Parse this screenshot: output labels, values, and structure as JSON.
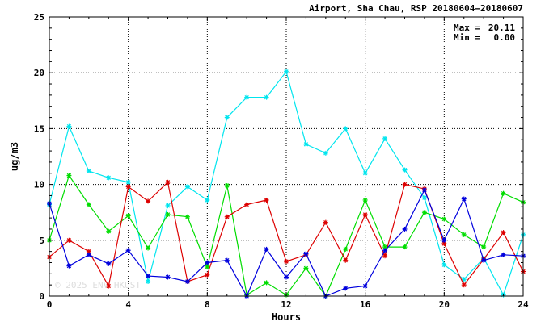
{
  "chart_data": {
    "type": "line",
    "title": "Airport, Sha Chau, RSP 20180604–20180607",
    "xlabel": "Hours",
    "ylabel": "ug/m3",
    "xlim": [
      0,
      24
    ],
    "ylim": [
      0,
      25
    ],
    "xticks": [
      0,
      4,
      8,
      12,
      16,
      20,
      24
    ],
    "yticks": [
      0,
      5,
      10,
      15,
      20,
      25
    ],
    "grid": true,
    "stats": {
      "max_label": "Max =",
      "max_value": "20.11",
      "min_label": "Min =",
      "min_value": "0.00"
    },
    "watermark": "© 2025 ENV HKUST",
    "x": [
      0,
      1,
      2,
      3,
      4,
      5,
      6,
      7,
      8,
      9,
      10,
      11,
      12,
      13,
      14,
      15,
      16,
      17,
      18,
      19,
      20,
      21,
      22,
      23,
      24
    ],
    "series": [
      {
        "color": "#00e5ee",
        "values": [
          8.2,
          15.2,
          11.2,
          10.6,
          10.2,
          1.3,
          8.1,
          9.8,
          8.6,
          16.0,
          17.8,
          17.8,
          20.1,
          13.6,
          12.8,
          15.0,
          11.0,
          14.1,
          11.3,
          8.8,
          2.8,
          1.5,
          3.4,
          0.1,
          5.5
        ]
      },
      {
        "color": "#00dd00",
        "values": [
          5.0,
          10.8,
          8.2,
          5.8,
          7.2,
          4.3,
          7.3,
          7.1,
          2.6,
          9.9,
          0.1,
          1.2,
          0.1,
          2.5,
          0.0,
          4.2,
          8.6,
          4.4,
          4.4,
          7.5,
          6.9,
          5.5,
          4.4,
          9.2,
          8.4
        ]
      },
      {
        "color": "#dd0000",
        "values": [
          3.5,
          5.0,
          4.0,
          0.9,
          9.8,
          8.5,
          10.2,
          1.3,
          1.9,
          7.1,
          8.2,
          8.6,
          3.1,
          3.7,
          6.6,
          3.2,
          7.3,
          3.6,
          10.0,
          9.6,
          4.7,
          1.0,
          3.3,
          5.7,
          2.2
        ]
      },
      {
        "color": "#0000dd",
        "values": [
          8.3,
          2.7,
          3.7,
          2.9,
          4.1,
          1.8,
          1.7,
          1.3,
          3.0,
          3.2,
          0.0,
          4.2,
          1.7,
          3.8,
          0.0,
          0.7,
          0.9,
          4.1,
          6.0,
          9.5,
          5.0,
          8.7,
          3.2,
          3.7,
          3.6
        ]
      }
    ]
  }
}
